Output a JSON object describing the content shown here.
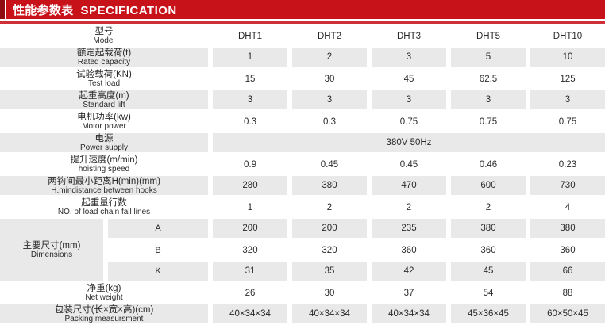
{
  "colors": {
    "banner_red": "#c8121a",
    "banner_dark_red": "#8f0d12",
    "row_shade": "#e9e9e9",
    "text": "#2a2a2a"
  },
  "banner": {
    "title_zh": "性能参数表",
    "title_en": "SPECIFICATION"
  },
  "table": {
    "header_row": {
      "zh": "型号",
      "en": "Model",
      "values": [
        "DHT1",
        "DHT2",
        "DHT3",
        "DHT5",
        "DHT10"
      ]
    },
    "rows": [
      {
        "zh": "额定起载荷(t)",
        "en": "Rated capacity",
        "values": [
          "1",
          "2",
          "3",
          "5",
          "10"
        ]
      },
      {
        "zh": "试验载荷(KN)",
        "en": "Test load",
        "values": [
          "15",
          "30",
          "45",
          "62.5",
          "125"
        ]
      },
      {
        "zh": "起重高度(m)",
        "en": "Standard lift",
        "values": [
          "3",
          "3",
          "3",
          "3",
          "3"
        ]
      },
      {
        "zh": "电机功率(kw)",
        "en": "Motor power",
        "values": [
          "0.3",
          "0.3",
          "0.75",
          "0.75",
          "0.75"
        ]
      },
      {
        "zh": "提升速度(m/min)",
        "en": "hoisting speed",
        "values": [
          "0.9",
          "0.45",
          "0.45",
          "0.46",
          "0.23"
        ]
      },
      {
        "zh": "两钩间最小距离H(min)(mm)",
        "en": "H.mindistance between hooks",
        "values": [
          "280",
          "380",
          "470",
          "600",
          "730"
        ]
      },
      {
        "zh": "起重量行数",
        "en": "NO. of load chain fall lines",
        "values": [
          "1",
          "2",
          "2",
          "2",
          "4"
        ]
      },
      {
        "zh": "净重(kg)",
        "en": "Net weight",
        "values": [
          "26",
          "30",
          "37",
          "54",
          "88"
        ]
      },
      {
        "zh": "包装尺寸(长×宽×高)(cm)",
        "en": "Packing measursment",
        "values": [
          "40×34×34",
          "40×34×34",
          "40×34×34",
          "45×36×45",
          "60×50×45"
        ]
      }
    ],
    "power_row": {
      "zh": "电源",
      "en": "Power supply",
      "value": "380V 50Hz"
    },
    "dims": {
      "zh": "主要尺寸(mm)",
      "en": "Dimensions",
      "subrows": [
        {
          "key": "A",
          "values": [
            "200",
            "200",
            "235",
            "380",
            "380"
          ]
        },
        {
          "key": "B",
          "values": [
            "320",
            "320",
            "360",
            "360",
            "360"
          ]
        },
        {
          "key": "K",
          "values": [
            "31",
            "35",
            "42",
            "45",
            "66"
          ]
        }
      ]
    }
  }
}
